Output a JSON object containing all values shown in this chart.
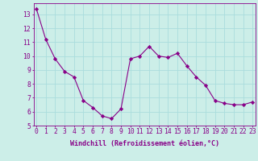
{
  "x": [
    0,
    1,
    2,
    3,
    4,
    5,
    6,
    7,
    8,
    9,
    10,
    11,
    12,
    13,
    14,
    15,
    16,
    17,
    18,
    19,
    20,
    21,
    22,
    23
  ],
  "y": [
    13.4,
    11.2,
    9.8,
    8.9,
    8.5,
    6.8,
    6.3,
    5.7,
    5.5,
    6.2,
    9.8,
    10.0,
    10.7,
    10.0,
    9.9,
    10.2,
    9.3,
    8.5,
    7.9,
    6.8,
    6.6,
    6.5,
    6.5,
    6.7
  ],
  "line_color": "#880088",
  "marker": "D",
  "marker_size": 2.2,
  "bg_color": "#cceee8",
  "grid_color": "#aadddd",
  "xlabel": "Windchill (Refroidissement éolien,°C)",
  "xlabel_fontsize": 6.0,
  "tick_fontsize": 5.8,
  "ylim": [
    5,
    13.8
  ],
  "xlim": [
    -0.3,
    23.3
  ],
  "yticks": [
    5,
    6,
    7,
    8,
    9,
    10,
    11,
    12,
    13
  ],
  "xticks": [
    0,
    1,
    2,
    3,
    4,
    5,
    6,
    7,
    8,
    9,
    10,
    11,
    12,
    13,
    14,
    15,
    16,
    17,
    18,
    19,
    20,
    21,
    22,
    23
  ]
}
